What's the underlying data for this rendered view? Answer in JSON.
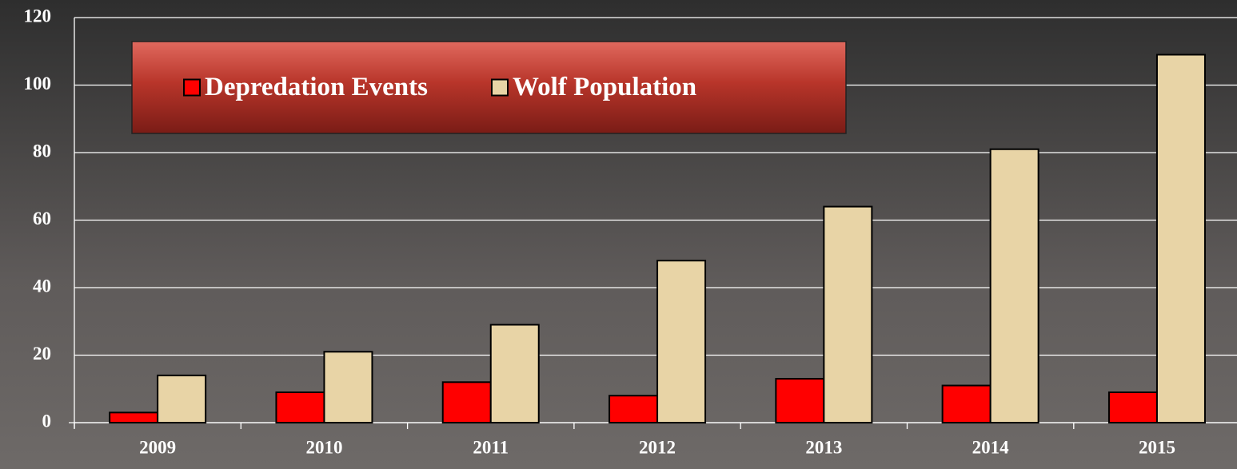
{
  "chart_data": {
    "type": "bar",
    "categories": [
      "2009",
      "2010",
      "2011",
      "2012",
      "2013",
      "2014",
      "2015"
    ],
    "series": [
      {
        "name": "Depredation Events",
        "color": "#ff0000",
        "values": [
          3,
          9,
          12,
          8,
          13,
          11,
          9
        ]
      },
      {
        "name": "Wolf Population",
        "color": "#e8d4a6",
        "values": [
          14,
          21,
          29,
          48,
          64,
          81,
          109
        ]
      }
    ],
    "ylim": [
      0,
      120
    ],
    "yticks": [
      0,
      20,
      40,
      60,
      80,
      100,
      120
    ],
    "grid": true,
    "legend": "upper left"
  }
}
